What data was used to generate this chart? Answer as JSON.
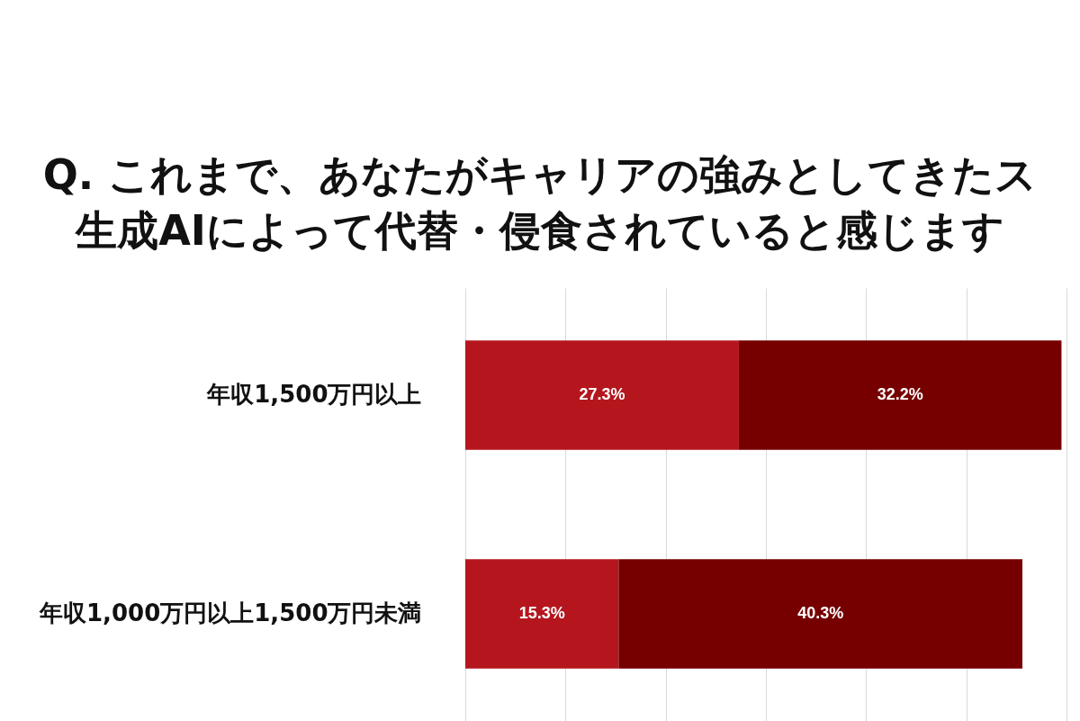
{
  "chart_data": {
    "type": "bar",
    "orientation": "horizontal",
    "stacked": true,
    "title": "Q. これまで、あなたがキャリアの強みとしてきたス生成AIによって代替・侵食されていると感じます",
    "categories": [
      "年収1,500万円以上",
      "年収1,000万円以上1,500万円未満"
    ],
    "series": [
      {
        "color": "#b5161e",
        "values": [
          27.3,
          15.3
        ],
        "value_labels": [
          "27.3%",
          "15.3%"
        ]
      },
      {
        "color": "#760000",
        "values": [
          32.2,
          40.3
        ],
        "value_labels": [
          "32.2%",
          "40.3%"
        ]
      }
    ],
    "xlim": [
      0,
      60
    ],
    "grid": "x",
    "tick_labels": "y"
  }
}
